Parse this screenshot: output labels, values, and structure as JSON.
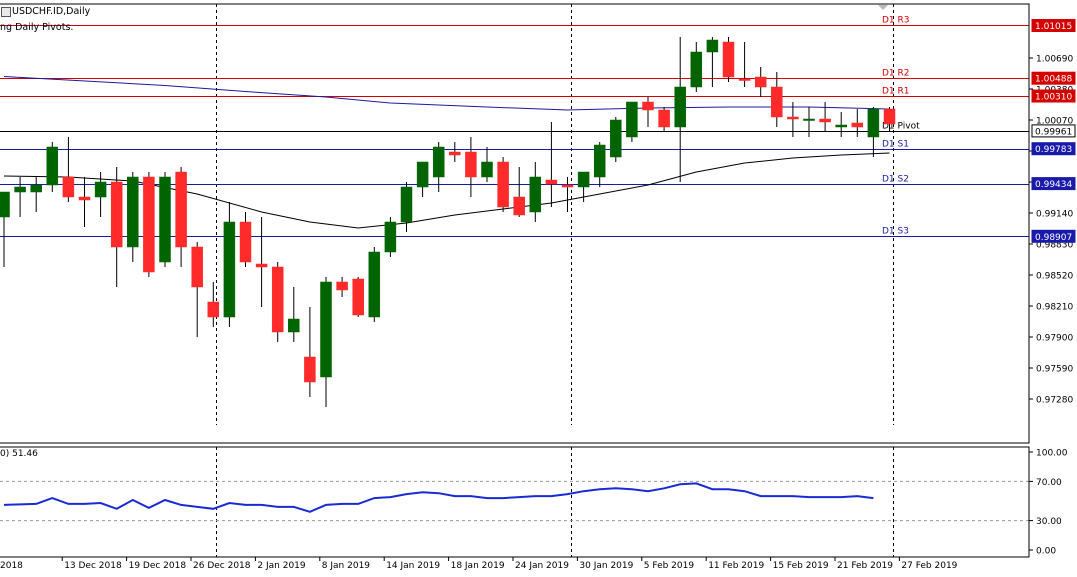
{
  "header": {
    "symbol": "USDCHF.ID,Daily",
    "indicator": "ng Daily Pivots.",
    "sub_indicator": "0) 51.46"
  },
  "colors": {
    "bull": "#006400",
    "bear": "#ff2a2a",
    "ma_slow": "#1a1aa6",
    "ma_fast": "#000000",
    "pivot_resistance": "#d40000",
    "pivot_support": "#1a1aaa",
    "pivot": "#000000",
    "rsi": "#1a2bd4"
  },
  "chart_data": {
    "type": "candlestick",
    "price_axis": {
      "ticks": [
        "1.00690",
        "1.00380",
        "1.00070",
        "0.99760",
        "0.99450",
        "0.99140",
        "0.98830",
        "0.98520",
        "0.98210",
        "0.97900",
        "0.97590",
        "0.97280"
      ],
      "range": [
        0.97,
        1.0125
      ]
    },
    "x_axis": {
      "labels": [
        {
          "text": "2018",
          "index": -0.5
        },
        {
          "text": "13 Dec 2018",
          "index": 2
        },
        {
          "text": "19 Dec 2018",
          "index": 6
        },
        {
          "text": "26 Dec 2018",
          "index": 10
        },
        {
          "text": "2 Jan 2019",
          "index": 14
        },
        {
          "text": "8 Jan 2019",
          "index": 18
        },
        {
          "text": "14 Jan 2019",
          "index": 22
        },
        {
          "text": "18 Jan 2019",
          "index": 26
        },
        {
          "text": "24 Jan 2019",
          "index": 30
        },
        {
          "text": "30 Jan 2019",
          "index": 34
        },
        {
          "text": "5 Feb 2019",
          "index": 38
        },
        {
          "text": "11 Feb 2019",
          "index": 42
        },
        {
          "text": "15 Feb 2019",
          "index": 46
        },
        {
          "text": "21 Feb 2019",
          "index": 50
        },
        {
          "text": "27 Feb 2019",
          "index": 54
        }
      ],
      "period_separators": [
        14,
        36,
        56
      ]
    },
    "pivots": [
      {
        "name": "D1 R3",
        "value": 1.01015,
        "label": "1.01015",
        "kind": "resistance"
      },
      {
        "name": "D1 R2",
        "value": 1.00488,
        "label": "1.00488",
        "kind": "resistance"
      },
      {
        "name": "D1 R1",
        "value": 1.0031,
        "label": "1.00310",
        "kind": "resistance"
      },
      {
        "name": "D1 Pivot",
        "value": 0.99961,
        "label": "0.99961",
        "kind": "pivot"
      },
      {
        "name": "D1 S1",
        "value": 0.99783,
        "label": "0.99783",
        "kind": "support"
      },
      {
        "name": "D1 S2",
        "value": 0.99434,
        "label": "0.99434",
        "kind": "support"
      },
      {
        "name": "D1 S3",
        "value": 0.98907,
        "label": "0.98907",
        "kind": "support"
      }
    ],
    "candles": [
      {
        "o": 0.991,
        "h": 0.9935,
        "l": 0.986,
        "c": 0.9935
      },
      {
        "o": 0.9935,
        "h": 0.995,
        "l": 0.991,
        "c": 0.994
      },
      {
        "o": 0.9935,
        "h": 0.995,
        "l": 0.9915,
        "c": 0.9942
      },
      {
        "o": 0.9942,
        "h": 0.9985,
        "l": 0.9935,
        "c": 0.998
      },
      {
        "o": 0.995,
        "h": 0.999,
        "l": 0.9925,
        "c": 0.993
      },
      {
        "o": 0.993,
        "h": 0.995,
        "l": 0.99,
        "c": 0.9927
      },
      {
        "o": 0.993,
        "h": 0.9955,
        "l": 0.991,
        "c": 0.9945
      },
      {
        "o": 0.9945,
        "h": 0.996,
        "l": 0.984,
        "c": 0.988
      },
      {
        "o": 0.988,
        "h": 0.9955,
        "l": 0.9865,
        "c": 0.995
      },
      {
        "o": 0.995,
        "h": 0.9955,
        "l": 0.985,
        "c": 0.9855
      },
      {
        "o": 0.9865,
        "h": 0.9955,
        "l": 0.986,
        "c": 0.995
      },
      {
        "o": 0.9955,
        "h": 0.996,
        "l": 0.986,
        "c": 0.988
      },
      {
        "o": 0.988,
        "h": 0.9885,
        "l": 0.979,
        "c": 0.984
      },
      {
        "o": 0.9825,
        "h": 0.9845,
        "l": 0.98,
        "c": 0.981
      },
      {
        "o": 0.981,
        "h": 0.9925,
        "l": 0.98,
        "c": 0.9905
      },
      {
        "o": 0.9905,
        "h": 0.9915,
        "l": 0.986,
        "c": 0.9865
      },
      {
        "o": 0.9863,
        "h": 0.991,
        "l": 0.982,
        "c": 0.986
      },
      {
        "o": 0.986,
        "h": 0.9865,
        "l": 0.9785,
        "c": 0.9795
      },
      {
        "o": 0.9795,
        "h": 0.984,
        "l": 0.9785,
        "c": 0.9808
      },
      {
        "o": 0.977,
        "h": 0.982,
        "l": 0.973,
        "c": 0.9745
      },
      {
        "o": 0.975,
        "h": 0.985,
        "l": 0.972,
        "c": 0.9845
      },
      {
        "o": 0.9845,
        "h": 0.985,
        "l": 0.983,
        "c": 0.9837
      },
      {
        "o": 0.9848,
        "h": 0.985,
        "l": 0.981,
        "c": 0.9812
      },
      {
        "o": 0.981,
        "h": 0.988,
        "l": 0.9805,
        "c": 0.9875
      },
      {
        "o": 0.9875,
        "h": 0.991,
        "l": 0.987,
        "c": 0.9905
      },
      {
        "o": 0.9905,
        "h": 0.9945,
        "l": 0.9895,
        "c": 0.994
      },
      {
        "o": 0.994,
        "h": 0.9965,
        "l": 0.993,
        "c": 0.9965
      },
      {
        "o": 0.995,
        "h": 0.9985,
        "l": 0.9935,
        "c": 0.998
      },
      {
        "o": 0.9975,
        "h": 0.9985,
        "l": 0.9965,
        "c": 0.9972
      },
      {
        "o": 0.9975,
        "h": 0.999,
        "l": 0.993,
        "c": 0.995
      },
      {
        "o": 0.995,
        "h": 0.998,
        "l": 0.9945,
        "c": 0.9965
      },
      {
        "o": 0.9965,
        "h": 0.997,
        "l": 0.9915,
        "c": 0.992
      },
      {
        "o": 0.993,
        "h": 0.996,
        "l": 0.991,
        "c": 0.9912
      },
      {
        "o": 0.9915,
        "h": 0.9965,
        "l": 0.9905,
        "c": 0.995
      },
      {
        "o": 0.9947,
        "h": 1.0005,
        "l": 0.992,
        "c": 0.9943
      },
      {
        "o": 0.9942,
        "h": 0.995,
        "l": 0.9915,
        "c": 0.994
      },
      {
        "o": 0.994,
        "h": 0.9955,
        "l": 0.9925,
        "c": 0.9955
      },
      {
        "o": 0.995,
        "h": 0.9985,
        "l": 0.994,
        "c": 0.9982
      },
      {
        "o": 0.997,
        "h": 1.001,
        "l": 0.9965,
        "c": 1.0007
      },
      {
        "o": 0.999,
        "h": 1.0025,
        "l": 0.9985,
        "c": 1.0025
      },
      {
        "o": 1.0025,
        "h": 1.003,
        "l": 1.0,
        "c": 1.0017
      },
      {
        "o": 1.0017,
        "h": 1.002,
        "l": 0.9995,
        "c": 1.0
      },
      {
        "o": 1.0,
        "h": 1.009,
        "l": 0.9945,
        "c": 1.004
      },
      {
        "o": 1.004,
        "h": 1.0085,
        "l": 1.0035,
        "c": 1.0075
      },
      {
        "o": 1.0075,
        "h": 1.009,
        "l": 1.004,
        "c": 1.0087
      },
      {
        "o": 1.0085,
        "h": 1.009,
        "l": 1.0045,
        "c": 1.005
      },
      {
        "o": 1.0048,
        "h": 1.0085,
        "l": 1.004,
        "c": 1.0047
      },
      {
        "o": 1.005,
        "h": 1.006,
        "l": 1.003,
        "c": 1.004
      },
      {
        "o": 1.004,
        "h": 1.0055,
        "l": 1.0,
        "c": 1.001
      },
      {
        "o": 1.001,
        "h": 1.0025,
        "l": 0.999,
        "c": 1.0008
      },
      {
        "o": 1.0008,
        "h": 1.002,
        "l": 0.999,
        "c": 1.0008
      },
      {
        "o": 1.0008,
        "h": 1.0025,
        "l": 0.9995,
        "c": 1.0005
      },
      {
        "o": 1.0,
        "h": 1.0015,
        "l": 0.999,
        "c": 1.0002
      },
      {
        "o": 1.0004,
        "h": 1.0018,
        "l": 0.999,
        "c": 1.0
      },
      {
        "o": 0.999,
        "h": 1.002,
        "l": 0.997,
        "c": 1.0018
      },
      {
        "o": 1.0018,
        "h": 1.002,
        "l": 0.9996,
        "c": 1.0003
      }
    ],
    "ma_slow": [
      [
        0,
        1.00505
      ],
      [
        10,
        1.00415
      ],
      [
        15,
        1.00355
      ],
      [
        20,
        1.003
      ],
      [
        24,
        1.0024
      ],
      [
        30,
        1.002
      ],
      [
        35,
        1.0017
      ],
      [
        40,
        1.0019
      ],
      [
        45,
        1.002
      ],
      [
        50,
        1.002
      ],
      [
        55,
        1.0018
      ]
    ],
    "ma_fast": [
      [
        0,
        0.9951
      ],
      [
        4,
        0.995
      ],
      [
        8,
        0.9946
      ],
      [
        12,
        0.9933
      ],
      [
        16,
        0.9915
      ],
      [
        19,
        0.9905
      ],
      [
        22,
        0.9899
      ],
      [
        25,
        0.9904
      ],
      [
        28,
        0.9912
      ],
      [
        31,
        0.9918
      ],
      [
        34,
        0.9924
      ],
      [
        37,
        0.9933
      ],
      [
        40,
        0.9942
      ],
      [
        43,
        0.9955
      ],
      [
        46,
        0.9964
      ],
      [
        49,
        0.9969
      ],
      [
        52,
        0.9972
      ],
      [
        55,
        0.9974
      ]
    ],
    "rsi": {
      "axis_ticks": [
        "100.00",
        "70.00",
        "30.00",
        "0.00"
      ],
      "range": [
        0,
        100
      ],
      "levels": [
        70,
        30
      ],
      "last": 51.46,
      "values": [
        [
          0,
          46
        ],
        [
          2,
          47
        ],
        [
          3,
          53
        ],
        [
          4,
          47
        ],
        [
          5,
          47
        ],
        [
          6,
          48
        ],
        [
          7,
          42
        ],
        [
          8,
          51
        ],
        [
          9,
          43
        ],
        [
          10,
          51
        ],
        [
          11,
          46
        ],
        [
          12,
          44
        ],
        [
          13,
          42
        ],
        [
          14,
          48
        ],
        [
          15,
          46
        ],
        [
          16,
          46
        ],
        [
          17,
          44
        ],
        [
          18,
          44
        ],
        [
          19,
          39
        ],
        [
          20,
          46
        ],
        [
          21,
          47
        ],
        [
          22,
          47
        ],
        [
          23,
          53
        ],
        [
          24,
          54
        ],
        [
          25,
          57
        ],
        [
          26,
          59
        ],
        [
          27,
          58
        ],
        [
          28,
          55
        ],
        [
          29,
          55
        ],
        [
          30,
          53
        ],
        [
          31,
          53
        ],
        [
          32,
          54
        ],
        [
          33,
          55
        ],
        [
          34,
          55
        ],
        [
          35,
          57
        ],
        [
          36,
          60
        ],
        [
          37,
          62
        ],
        [
          38,
          63
        ],
        [
          39,
          62
        ],
        [
          40,
          60
        ],
        [
          41,
          63
        ],
        [
          42,
          67
        ],
        [
          43,
          68
        ],
        [
          44,
          62
        ],
        [
          45,
          62
        ],
        [
          46,
          60
        ],
        [
          47,
          55
        ],
        [
          48,
          55
        ],
        [
          49,
          55
        ],
        [
          50,
          54
        ],
        [
          51,
          54
        ],
        [
          52,
          54
        ],
        [
          53,
          55
        ],
        [
          54,
          53
        ]
      ]
    }
  }
}
